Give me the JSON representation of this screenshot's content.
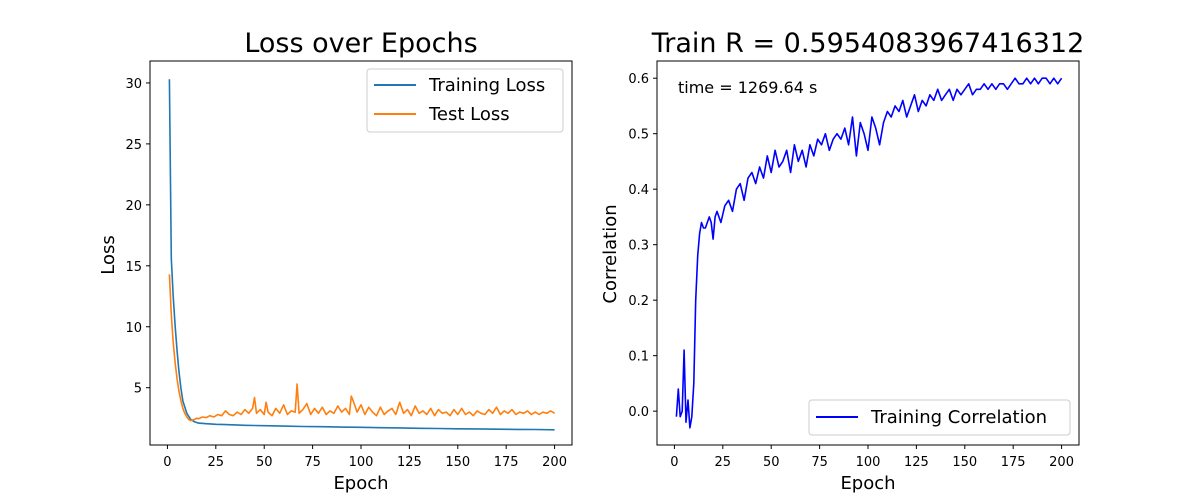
{
  "chart_data": [
    {
      "type": "line",
      "title": "Loss over Epochs",
      "xlabel": "Epoch",
      "ylabel": "Loss",
      "xlim": [
        -9,
        209
      ],
      "ylim": [
        0.3,
        31.8
      ],
      "xticks": [
        0,
        25,
        50,
        75,
        100,
        125,
        150,
        175,
        200
      ],
      "yticks": [
        5,
        10,
        15,
        20,
        25,
        30
      ],
      "grid": false,
      "legend_position": "upper-right",
      "series": [
        {
          "name": "Training Loss",
          "color": "#1f77b4",
          "x": [
            1,
            2,
            3,
            4,
            5,
            6,
            7,
            8,
            10,
            12,
            14,
            16,
            20,
            25,
            30,
            40,
            50,
            60,
            70,
            80,
            90,
            100,
            110,
            120,
            130,
            140,
            150,
            160,
            170,
            180,
            190,
            200
          ],
          "y": [
            30.3,
            15.6,
            12.5,
            10.0,
            8.0,
            6.3,
            4.9,
            3.9,
            2.9,
            2.4,
            2.2,
            2.1,
            2.05,
            2.0,
            1.97,
            1.92,
            1.88,
            1.85,
            1.82,
            1.8,
            1.77,
            1.75,
            1.72,
            1.7,
            1.67,
            1.65,
            1.63,
            1.62,
            1.6,
            1.58,
            1.57,
            1.55
          ]
        },
        {
          "name": "Test Loss",
          "color": "#ff7f0e",
          "x": [
            1,
            2,
            3,
            4,
            5,
            6,
            7,
            8,
            9,
            10,
            11,
            12,
            13,
            14,
            15,
            16,
            18,
            20,
            22,
            24,
            26,
            28,
            30,
            32,
            34,
            36,
            38,
            40,
            42,
            44,
            45,
            46,
            48,
            50,
            51,
            52,
            54,
            56,
            58,
            60,
            62,
            64,
            66,
            67,
            68,
            70,
            72,
            74,
            76,
            78,
            80,
            82,
            84,
            86,
            88,
            90,
            92,
            94,
            95,
            96,
            98,
            100,
            102,
            104,
            106,
            108,
            110,
            112,
            114,
            116,
            118,
            120,
            122,
            124,
            126,
            128,
            130,
            132,
            134,
            136,
            138,
            140,
            142,
            144,
            146,
            148,
            150,
            152,
            154,
            156,
            158,
            160,
            162,
            164,
            166,
            168,
            170,
            172,
            174,
            176,
            178,
            180,
            182,
            184,
            186,
            188,
            190,
            192,
            194,
            196,
            198,
            200
          ],
          "y": [
            14.3,
            11.0,
            8.7,
            7.0,
            5.7,
            4.7,
            3.9,
            3.3,
            2.9,
            2.6,
            2.4,
            2.3,
            2.35,
            2.4,
            2.5,
            2.45,
            2.6,
            2.55,
            2.7,
            2.6,
            2.8,
            2.7,
            3.1,
            2.8,
            2.7,
            3.0,
            2.8,
            3.2,
            2.9,
            3.3,
            4.2,
            2.9,
            3.2,
            2.8,
            3.8,
            3.0,
            2.7,
            3.3,
            2.9,
            3.6,
            2.8,
            3.1,
            3.0,
            5.3,
            2.9,
            3.2,
            3.7,
            2.8,
            3.3,
            2.9,
            3.4,
            2.8,
            3.1,
            2.9,
            3.5,
            3.0,
            3.3,
            2.8,
            4.3,
            3.9,
            3.0,
            3.6,
            2.8,
            3.4,
            3.0,
            2.7,
            3.4,
            2.8,
            3.1,
            3.3,
            2.8,
            3.8,
            2.9,
            3.2,
            2.7,
            3.5,
            2.9,
            3.1,
            2.8,
            3.3,
            2.7,
            3.2,
            2.9,
            3.0,
            2.7,
            3.2,
            2.8,
            3.3,
            2.8,
            3.0,
            2.7,
            3.1,
            2.9,
            2.8,
            3.2,
            2.9,
            3.4,
            2.8,
            3.1,
            2.9,
            3.2,
            2.8,
            3.0,
            2.9,
            3.1,
            2.8,
            3.0,
            2.8,
            3.0,
            2.9,
            3.1,
            2.9
          ]
        }
      ]
    },
    {
      "type": "line",
      "title": "Train R = 0.5954083967416312",
      "xlabel": "Epoch",
      "ylabel": "Correlation",
      "annotation": "time = 1269.64 s",
      "xlim": [
        -9,
        209
      ],
      "ylim": [
        -0.061,
        0.631
      ],
      "xticks": [
        0,
        25,
        50,
        75,
        100,
        125,
        150,
        175,
        200
      ],
      "yticks": [
        0.0,
        0.1,
        0.2,
        0.3,
        0.4,
        0.5,
        0.6
      ],
      "grid": false,
      "legend_position": "lower-right",
      "series": [
        {
          "name": "Training Correlation",
          "color": "#0000ff",
          "x": [
            1,
            2,
            3,
            4,
            5,
            6,
            7,
            8,
            9,
            10,
            11,
            12,
            13,
            14,
            15,
            16,
            17,
            18,
            19,
            20,
            21,
            22,
            24,
            26,
            28,
            30,
            32,
            34,
            36,
            38,
            40,
            42,
            44,
            46,
            48,
            50,
            52,
            54,
            56,
            58,
            60,
            62,
            64,
            66,
            68,
            70,
            72,
            74,
            76,
            78,
            80,
            82,
            84,
            86,
            88,
            90,
            92,
            94,
            96,
            98,
            100,
            102,
            104,
            106,
            108,
            110,
            112,
            114,
            116,
            118,
            120,
            122,
            124,
            126,
            128,
            130,
            132,
            134,
            136,
            138,
            140,
            142,
            144,
            146,
            148,
            150,
            152,
            154,
            156,
            158,
            160,
            162,
            164,
            166,
            168,
            170,
            172,
            174,
            176,
            178,
            180,
            182,
            184,
            186,
            188,
            190,
            192,
            194,
            196,
            198,
            200
          ],
          "y": [
            -0.01,
            0.04,
            -0.01,
            0.0,
            0.11,
            -0.02,
            0.02,
            -0.03,
            -0.01,
            0.05,
            0.2,
            0.28,
            0.32,
            0.34,
            0.33,
            0.33,
            0.34,
            0.35,
            0.34,
            0.31,
            0.35,
            0.36,
            0.34,
            0.37,
            0.38,
            0.36,
            0.4,
            0.41,
            0.38,
            0.42,
            0.43,
            0.41,
            0.44,
            0.42,
            0.46,
            0.43,
            0.47,
            0.44,
            0.45,
            0.47,
            0.43,
            0.48,
            0.45,
            0.47,
            0.44,
            0.48,
            0.46,
            0.49,
            0.48,
            0.5,
            0.47,
            0.49,
            0.5,
            0.49,
            0.51,
            0.48,
            0.53,
            0.46,
            0.52,
            0.5,
            0.47,
            0.53,
            0.51,
            0.48,
            0.52,
            0.54,
            0.53,
            0.55,
            0.54,
            0.56,
            0.53,
            0.55,
            0.57,
            0.54,
            0.56,
            0.55,
            0.57,
            0.56,
            0.58,
            0.56,
            0.57,
            0.58,
            0.56,
            0.58,
            0.57,
            0.58,
            0.59,
            0.57,
            0.58,
            0.58,
            0.59,
            0.58,
            0.59,
            0.58,
            0.59,
            0.59,
            0.58,
            0.59,
            0.6,
            0.59,
            0.59,
            0.6,
            0.59,
            0.6,
            0.59,
            0.6,
            0.6,
            0.59,
            0.6,
            0.59,
            0.6
          ]
        }
      ]
    }
  ]
}
